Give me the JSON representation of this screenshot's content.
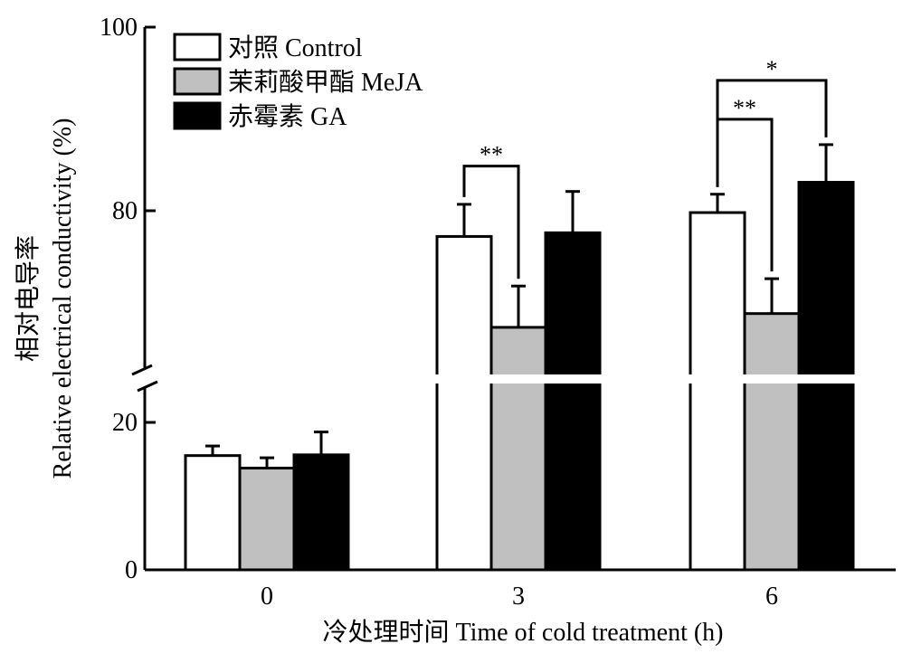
{
  "chart_data": {
    "type": "bar",
    "categories": [
      "0",
      "3",
      "6"
    ],
    "xlabel": "冷处理时间 Time of cold treatment (h)",
    "ylabel_cn": "相对电导率",
    "ylabel_en": "Relative electrical conductivity (%)",
    "ylim": [
      0,
      100
    ],
    "y_axis_break": [
      20,
      60
    ],
    "y_ticks": [
      "0",
      "20",
      "80",
      "100"
    ],
    "series": [
      {
        "name": "对照 Control",
        "color": "#ffffff",
        "values": [
          15.5,
          77.2,
          79.8
        ],
        "errors": [
          1.3,
          3.5,
          2.0
        ]
      },
      {
        "name": "茉莉酸甲酯 MeJA",
        "color": "#c0c0c0",
        "values": [
          13.8,
          67.3,
          68.8
        ],
        "errors": [
          1.4,
          4.5,
          3.8
        ]
      },
      {
        "name": "赤霉素 GA",
        "color": "#000000",
        "values": [
          15.6,
          77.6,
          83.1
        ],
        "errors": [
          3.1,
          4.5,
          4.1
        ]
      }
    ],
    "significance": [
      {
        "label": "**",
        "category": 1,
        "from": 0,
        "to": 1
      },
      {
        "label": "**",
        "category": 2,
        "from": 0,
        "to": 1
      },
      {
        "label": "*",
        "category": 2,
        "from": 0,
        "to": 2
      }
    ],
    "legend_position": "top-left"
  }
}
